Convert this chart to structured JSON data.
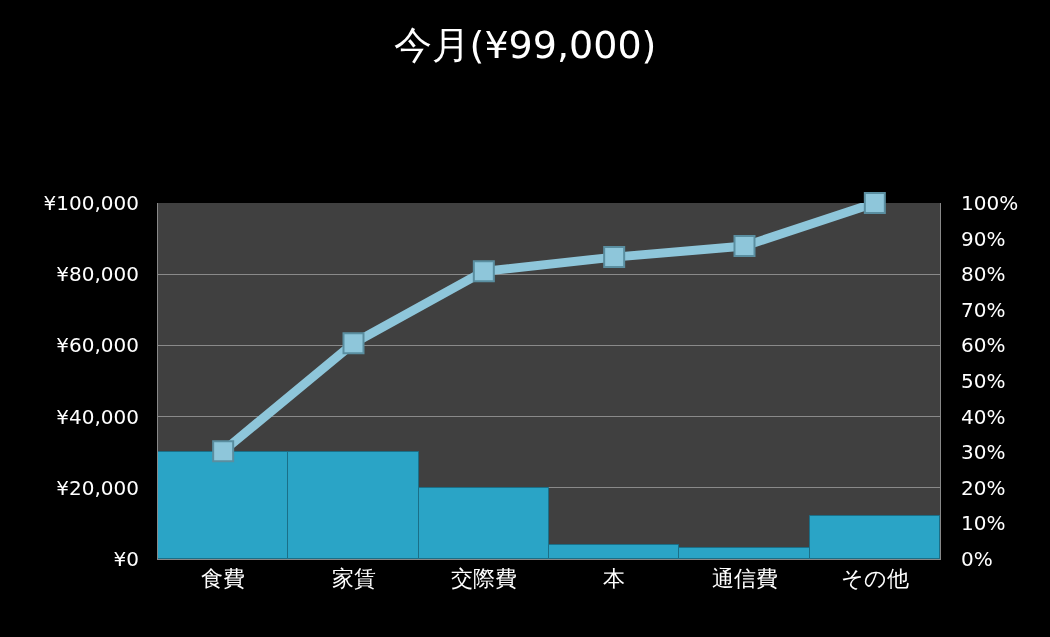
{
  "chart_data": {
    "type": "bar",
    "title": "今月(¥99,000)",
    "categories": [
      "食費",
      "家賃",
      "交際費",
      "本",
      "通信費",
      "その他"
    ],
    "series": [
      {
        "color": "#2aa4c6",
        "values": [
          30000,
          30000,
          20000,
          4000,
          3000,
          12000
        ]
      },
      {
        "type": "line",
        "axis": "y2",
        "color": "#8ec6da",
        "values": [
          30.3,
          60.6,
          80.8,
          84.8,
          87.9,
          100
        ],
        "marker": "square"
      }
    ],
    "ylim": [
      0,
      100000
    ],
    "yticks": [
      {
        "value": 0,
        "label": "¥0"
      },
      {
        "value": 20000,
        "label": "¥20,000"
      },
      {
        "value": 40000,
        "label": "¥40,000"
      },
      {
        "value": 60000,
        "label": "¥60,000"
      },
      {
        "value": 80000,
        "label": "¥80,000"
      },
      {
        "value": 100000,
        "label": "¥100,000"
      }
    ],
    "y2lim": [
      0,
      100
    ],
    "y2ticks": [
      {
        "value": 0,
        "label": "0%"
      },
      {
        "value": 10,
        "label": "10%"
      },
      {
        "value": 20,
        "label": "20%"
      },
      {
        "value": 30,
        "label": "30%"
      },
      {
        "value": 40,
        "label": "40%"
      },
      {
        "value": 50,
        "label": "50%"
      },
      {
        "value": 60,
        "label": "60%"
      },
      {
        "value": 70,
        "label": "70%"
      },
      {
        "value": 80,
        "label": "80%"
      },
      {
        "value": 90,
        "label": "90%"
      },
      {
        "value": 100,
        "label": "100%"
      }
    ],
    "grid": "y"
  }
}
